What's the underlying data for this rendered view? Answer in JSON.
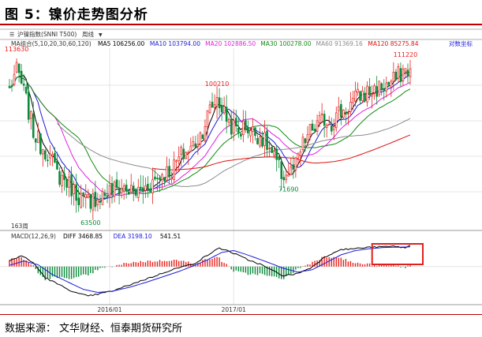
{
  "page": {
    "title": "图 5：镍价走势图分析",
    "source_label": "数据来源：",
    "source_text": "文华财经、恒泰期货研究所"
  },
  "toolbar": {
    "symbol": "沪镍指数(SNNI T500)",
    "period": "周线"
  },
  "colors": {
    "up": "#e8211c",
    "down": "#0a8a3a",
    "ma5": "#000000",
    "ma10": "#1c1cd8",
    "ma20": "#e020e0",
    "ma30": "#118a11",
    "ma60": "#8c8c8c",
    "ma120": "#e01010",
    "dif": "#000000",
    "dea": "#1c1cd8",
    "highlight": "#e02020"
  },
  "chart_data": [
    {
      "type": "candlestick",
      "name": "沪镍指数 周线",
      "y_scale_label": "对数坐标",
      "ma_legend": {
        "group": "MA组合(5,10,20,30,60,120)",
        "items": [
          {
            "label": "MA5",
            "value": "106256.00",
            "color_key": "ma5"
          },
          {
            "label": "MA10",
            "value": "103794.00",
            "color_key": "ma10"
          },
          {
            "label": "MA20",
            "value": "102886.50",
            "color_key": "ma20"
          },
          {
            "label": "MA30",
            "value": "100278.00",
            "color_key": "ma30"
          },
          {
            "label": "MA60",
            "value": "91369.16",
            "color_key": "ma60"
          },
          {
            "label": "MA120",
            "value": "85275.84",
            "color_key": "ma120"
          }
        ]
      },
      "annotations": [
        {
          "text": "113630",
          "week": 3,
          "price": 113630,
          "pos": "above"
        },
        {
          "text": "63500",
          "week": 34,
          "price": 63500,
          "pos": "below"
        },
        {
          "text": "100210",
          "week": 87,
          "price": 100210,
          "pos": "above"
        },
        {
          "text": "71690",
          "week": 117,
          "price": 71690,
          "pos": "below"
        },
        {
          "text": "111220",
          "week": 166,
          "price": 111220,
          "pos": "above"
        }
      ],
      "keypoints": [
        [
          0,
          100000
        ],
        [
          3,
          108000
        ],
        [
          5,
          102000
        ],
        [
          7,
          96000
        ],
        [
          10,
          86000
        ],
        [
          13,
          82000
        ],
        [
          16,
          80000
        ],
        [
          20,
          74000
        ],
        [
          24,
          72000
        ],
        [
          28,
          69000
        ],
        [
          32,
          67000
        ],
        [
          36,
          68000
        ],
        [
          40,
          69000
        ],
        [
          44,
          70000
        ],
        [
          48,
          70500
        ],
        [
          52,
          69000
        ],
        [
          56,
          70000
        ],
        [
          60,
          72000
        ],
        [
          64,
          74000
        ],
        [
          68,
          75000
        ],
        [
          72,
          79000
        ],
        [
          76,
          81000
        ],
        [
          80,
          85000
        ],
        [
          84,
          93000
        ],
        [
          87,
          97000
        ],
        [
          90,
          92000
        ],
        [
          93,
          88000
        ],
        [
          96,
          86000
        ],
        [
          99,
          88000
        ],
        [
          102,
          86000
        ],
        [
          105,
          85000
        ],
        [
          108,
          82000
        ],
        [
          111,
          78000
        ],
        [
          114,
          74000
        ],
        [
          117,
          73500
        ],
        [
          120,
          76000
        ],
        [
          123,
          82000
        ],
        [
          126,
          86000
        ],
        [
          129,
          88000
        ],
        [
          132,
          90000
        ],
        [
          135,
          89000
        ],
        [
          138,
          92000
        ],
        [
          141,
          93000
        ],
        [
          144,
          96000
        ],
        [
          147,
          98000
        ],
        [
          150,
          99000
        ],
        [
          153,
          100000
        ],
        [
          156,
          101000
        ],
        [
          159,
          102000
        ],
        [
          162,
          104000
        ],
        [
          166,
          108000
        ],
        [
          168,
          107000
        ]
      ],
      "weeks": 169,
      "ylim": [
        62000,
        116000
      ],
      "x_ticks": [
        {
          "label": "2016/01",
          "week": 42
        },
        {
          "label": "2017/01",
          "week": 94
        }
      ],
      "bottom_label": "163周"
    },
    {
      "type": "macd",
      "params": "MACD(12,26,9)",
      "legend": [
        {
          "label": "DIFF",
          "value": "3468.85",
          "color_key": "dif"
        },
        {
          "label": "DEA",
          "value": "3198.10",
          "color_key": "dea"
        },
        {
          "label": "",
          "value": "541.51",
          "color_key": "dif"
        }
      ],
      "dif_keypoints": [
        [
          0,
          900
        ],
        [
          5,
          1800
        ],
        [
          10,
          600
        ],
        [
          15,
          -1800
        ],
        [
          22,
          -3200
        ],
        [
          28,
          -4300
        ],
        [
          33,
          -4800
        ],
        [
          38,
          -4400
        ],
        [
          44,
          -3900
        ],
        [
          50,
          -3000
        ],
        [
          56,
          -2200
        ],
        [
          62,
          -1400
        ],
        [
          68,
          -500
        ],
        [
          73,
          0
        ],
        [
          78,
          600
        ],
        [
          84,
          2100
        ],
        [
          88,
          3000
        ],
        [
          92,
          2500
        ],
        [
          96,
          1800
        ],
        [
          100,
          1100
        ],
        [
          105,
          400
        ],
        [
          110,
          -600
        ],
        [
          115,
          -1500
        ],
        [
          120,
          -1200
        ],
        [
          126,
          -300
        ],
        [
          132,
          1500
        ],
        [
          138,
          2700
        ],
        [
          144,
          2900
        ],
        [
          150,
          3100
        ],
        [
          156,
          3200
        ],
        [
          162,
          3300
        ],
        [
          166,
          3000
        ],
        [
          168,
          3470
        ]
      ],
      "dea_keypoints": [
        [
          0,
          200
        ],
        [
          6,
          900
        ],
        [
          12,
          300
        ],
        [
          18,
          -1300
        ],
        [
          25,
          -2600
        ],
        [
          31,
          -3700
        ],
        [
          37,
          -4200
        ],
        [
          43,
          -4000
        ],
        [
          50,
          -3400
        ],
        [
          57,
          -2600
        ],
        [
          64,
          -1700
        ],
        [
          71,
          -800
        ],
        [
          77,
          100
        ],
        [
          83,
          1100
        ],
        [
          89,
          2300
        ],
        [
          94,
          2600
        ],
        [
          99,
          2000
        ],
        [
          104,
          1300
        ],
        [
          109,
          600
        ],
        [
          115,
          -300
        ],
        [
          121,
          -900
        ],
        [
          127,
          -500
        ],
        [
          133,
          700
        ],
        [
          139,
          1900
        ],
        [
          145,
          2600
        ],
        [
          151,
          2900
        ],
        [
          157,
          3100
        ],
        [
          163,
          3150
        ],
        [
          168,
          3200
        ]
      ],
      "ylim": [
        -5800,
        4200
      ],
      "highlight_box": {
        "week_from": 154,
        "week_to": 168
      }
    }
  ]
}
